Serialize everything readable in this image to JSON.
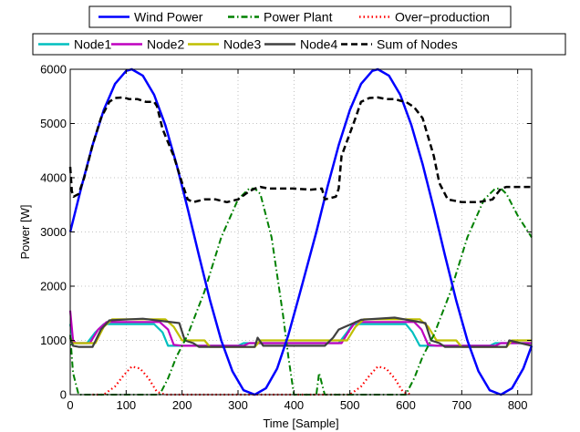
{
  "chart_data": {
    "type": "line",
    "xlabel": "Time [Sample]",
    "ylabel": "Power [W]",
    "xlim": [
      0,
      825
    ],
    "ylim": [
      0,
      6000
    ],
    "xticks": [
      0,
      100,
      200,
      300,
      400,
      500,
      600,
      700,
      800
    ],
    "yticks": [
      0,
      1000,
      2000,
      3000,
      4000,
      5000,
      6000
    ],
    "grid": true,
    "legend_placement": "top, outside plot (two rows)",
    "legends": [
      {
        "row": 1,
        "entries": [
          "Wind Power",
          "Power Plant",
          "Over−production"
        ]
      },
      {
        "row": 2,
        "entries": [
          "Node1",
          "Node2",
          "Node3",
          "Node4",
          "Sum of Nodes"
        ]
      }
    ],
    "series": [
      {
        "name": "Wind Power",
        "color": "#0000ff",
        "style": "solid",
        "x": [
          0,
          20,
          40,
          60,
          80,
          100,
          110,
          130,
          150,
          170,
          190,
          210,
          230,
          250,
          270,
          290,
          310,
          330,
          350,
          370,
          390,
          410,
          440,
          460,
          480,
          500,
          520,
          540,
          550,
          570,
          590,
          610,
          630,
          650,
          670,
          690,
          710,
          730,
          750,
          770,
          790,
          810,
          825
        ],
        "y": [
          3000,
          3830,
          4600,
          5250,
          5730,
          5970,
          6000,
          5880,
          5530,
          4970,
          4250,
          3430,
          2570,
          1740,
          1000,
          430,
          80,
          0,
          120,
          480,
          1100,
          1850,
          3000,
          3830,
          4600,
          5250,
          5730,
          5970,
          6000,
          5880,
          5530,
          4970,
          4250,
          3430,
          2570,
          1740,
          1000,
          430,
          80,
          0,
          120,
          480,
          900
        ]
      },
      {
        "name": "Power Plant",
        "color": "#008000",
        "style": "dashdot",
        "x": [
          0,
          5,
          15,
          30,
          140,
          160,
          175,
          190,
          210,
          240,
          270,
          300,
          320,
          330,
          340,
          360,
          380,
          390,
          400,
          440,
          445,
          455,
          470,
          580,
          600,
          615,
          630,
          650,
          680,
          710,
          740,
          760,
          770,
          780,
          800,
          825
        ],
        "y": [
          1100,
          400,
          0,
          0,
          0,
          0,
          300,
          700,
          1100,
          1900,
          2900,
          3600,
          3800,
          3800,
          3700,
          2900,
          1500,
          700,
          0,
          0,
          400,
          0,
          0,
          0,
          0,
          300,
          700,
          1100,
          1900,
          2900,
          3600,
          3800,
          3800,
          3700,
          3300,
          2900
        ]
      },
      {
        "name": "Over−production",
        "color": "#ff0000",
        "style": "dotted",
        "x": [
          40,
          60,
          80,
          95,
          110,
          125,
          140,
          155,
          170,
          480,
          500,
          520,
          535,
          550,
          565,
          580,
          595,
          610
        ],
        "y": [
          0,
          0,
          150,
          350,
          520,
          480,
          300,
          50,
          0,
          0,
          0,
          150,
          350,
          520,
          480,
          300,
          50,
          0
        ]
      },
      {
        "name": "Node1",
        "color": "#00bfbf",
        "style": "solid",
        "x": [
          0,
          5,
          10,
          30,
          45,
          60,
          150,
          165,
          175,
          200,
          300,
          310,
          480,
          495,
          505,
          600,
          612,
          625,
          650,
          750,
          760,
          825
        ],
        "y": [
          1300,
          1000,
          950,
          950,
          1150,
          1300,
          1300,
          1150,
          900,
          900,
          900,
          950,
          950,
          1150,
          1300,
          1300,
          1150,
          900,
          900,
          900,
          950,
          950
        ]
      },
      {
        "name": "Node2",
        "color": "#bf00bf",
        "style": "solid",
        "x": [
          0,
          5,
          10,
          35,
          50,
          65,
          160,
          175,
          185,
          200,
          310,
          320,
          485,
          500,
          510,
          615,
          628,
          640,
          655,
          760,
          770,
          825
        ],
        "y": [
          1550,
          1000,
          950,
          950,
          1200,
          1340,
          1340,
          1200,
          920,
          900,
          900,
          950,
          950,
          1200,
          1340,
          1340,
          1200,
          920,
          900,
          900,
          950,
          950
        ]
      },
      {
        "name": "Node3",
        "color": "#bfbf00",
        "style": "solid",
        "x": [
          0,
          5,
          10,
          45,
          60,
          75,
          170,
          185,
          200,
          240,
          250,
          330,
          340,
          495,
          510,
          525,
          625,
          640,
          655,
          690,
          700,
          780,
          790,
          825
        ],
        "y": [
          1050,
          950,
          950,
          950,
          1250,
          1390,
          1390,
          1250,
          1000,
          1000,
          880,
          880,
          1000,
          1000,
          1250,
          1390,
          1390,
          1250,
          1000,
          1000,
          880,
          880,
          1000,
          1000
        ]
      },
      {
        "name": "Node4",
        "color": "#404040",
        "style": "solid",
        "x": [
          0,
          5,
          15,
          40,
          55,
          70,
          130,
          195,
          205,
          220,
          230,
          330,
          335,
          345,
          455,
          470,
          480,
          520,
          580,
          635,
          645,
          660,
          670,
          780,
          785,
          825
        ],
        "y": [
          1050,
          900,
          880,
          880,
          1200,
          1370,
          1400,
          1320,
          1000,
          950,
          880,
          880,
          1050,
          900,
          900,
          1050,
          1200,
          1380,
          1420,
          1320,
          1000,
          950,
          880,
          880,
          1000,
          900
        ]
      },
      {
        "name": "Sum of Nodes",
        "color": "#000000",
        "style": "dashed",
        "x": [
          0,
          3,
          6,
          15,
          25,
          40,
          55,
          70,
          80,
          95,
          105,
          120,
          135,
          150,
          155,
          165,
          185,
          200,
          210,
          220,
          240,
          260,
          280,
          300,
          320,
          330,
          340,
          355,
          400,
          430,
          450,
          455,
          475,
          480,
          485,
          510,
          520,
          535,
          550,
          565,
          580,
          590,
          600,
          615,
          630,
          650,
          660,
          675,
          700,
          730,
          755,
          770,
          780,
          790,
          825
        ],
        "y": [
          4200,
          3750,
          3650,
          3700,
          4000,
          4600,
          5100,
          5400,
          5470,
          5480,
          5450,
          5450,
          5400,
          5400,
          5320,
          4900,
          4400,
          3900,
          3600,
          3550,
          3600,
          3600,
          3550,
          3600,
          3750,
          3800,
          3830,
          3800,
          3800,
          3780,
          3800,
          3600,
          3650,
          3800,
          4400,
          5100,
          5400,
          5470,
          5480,
          5450,
          5450,
          5420,
          5400,
          5300,
          5100,
          4400,
          3900,
          3600,
          3550,
          3550,
          3600,
          3800,
          3830,
          3830,
          3830
        ]
      }
    ]
  }
}
